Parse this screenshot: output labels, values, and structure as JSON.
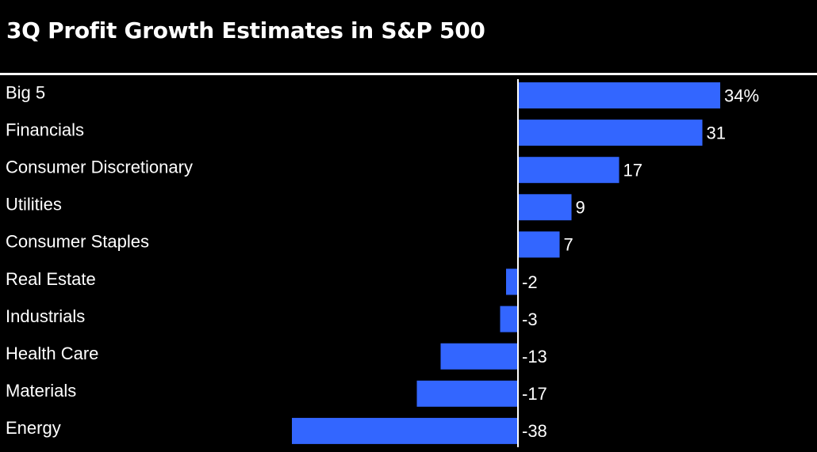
{
  "chart_data": {
    "type": "bar",
    "orientation": "horizontal",
    "title": "3Q Profit Growth Estimates in S&P 500",
    "categories": [
      "Big 5",
      "Financials",
      "Consumer Discretionary",
      "Utilities",
      "Consumer Staples",
      "Real Estate",
      "Industrials",
      "Health Care",
      "Materials",
      "Energy"
    ],
    "values": [
      34,
      31,
      17,
      9,
      7,
      -2,
      -3,
      -13,
      -17,
      -38
    ],
    "value_labels": [
      "34%",
      "31",
      "17",
      "9",
      "7",
      "-2",
      "-3",
      "-13",
      "-17",
      "-38"
    ],
    "xlim": [
      -40,
      40
    ],
    "unit": "%",
    "bar_color": "#3366ff",
    "background_color": "#000000",
    "text_color": "#ffffff",
    "grid": false,
    "legend": "none"
  }
}
